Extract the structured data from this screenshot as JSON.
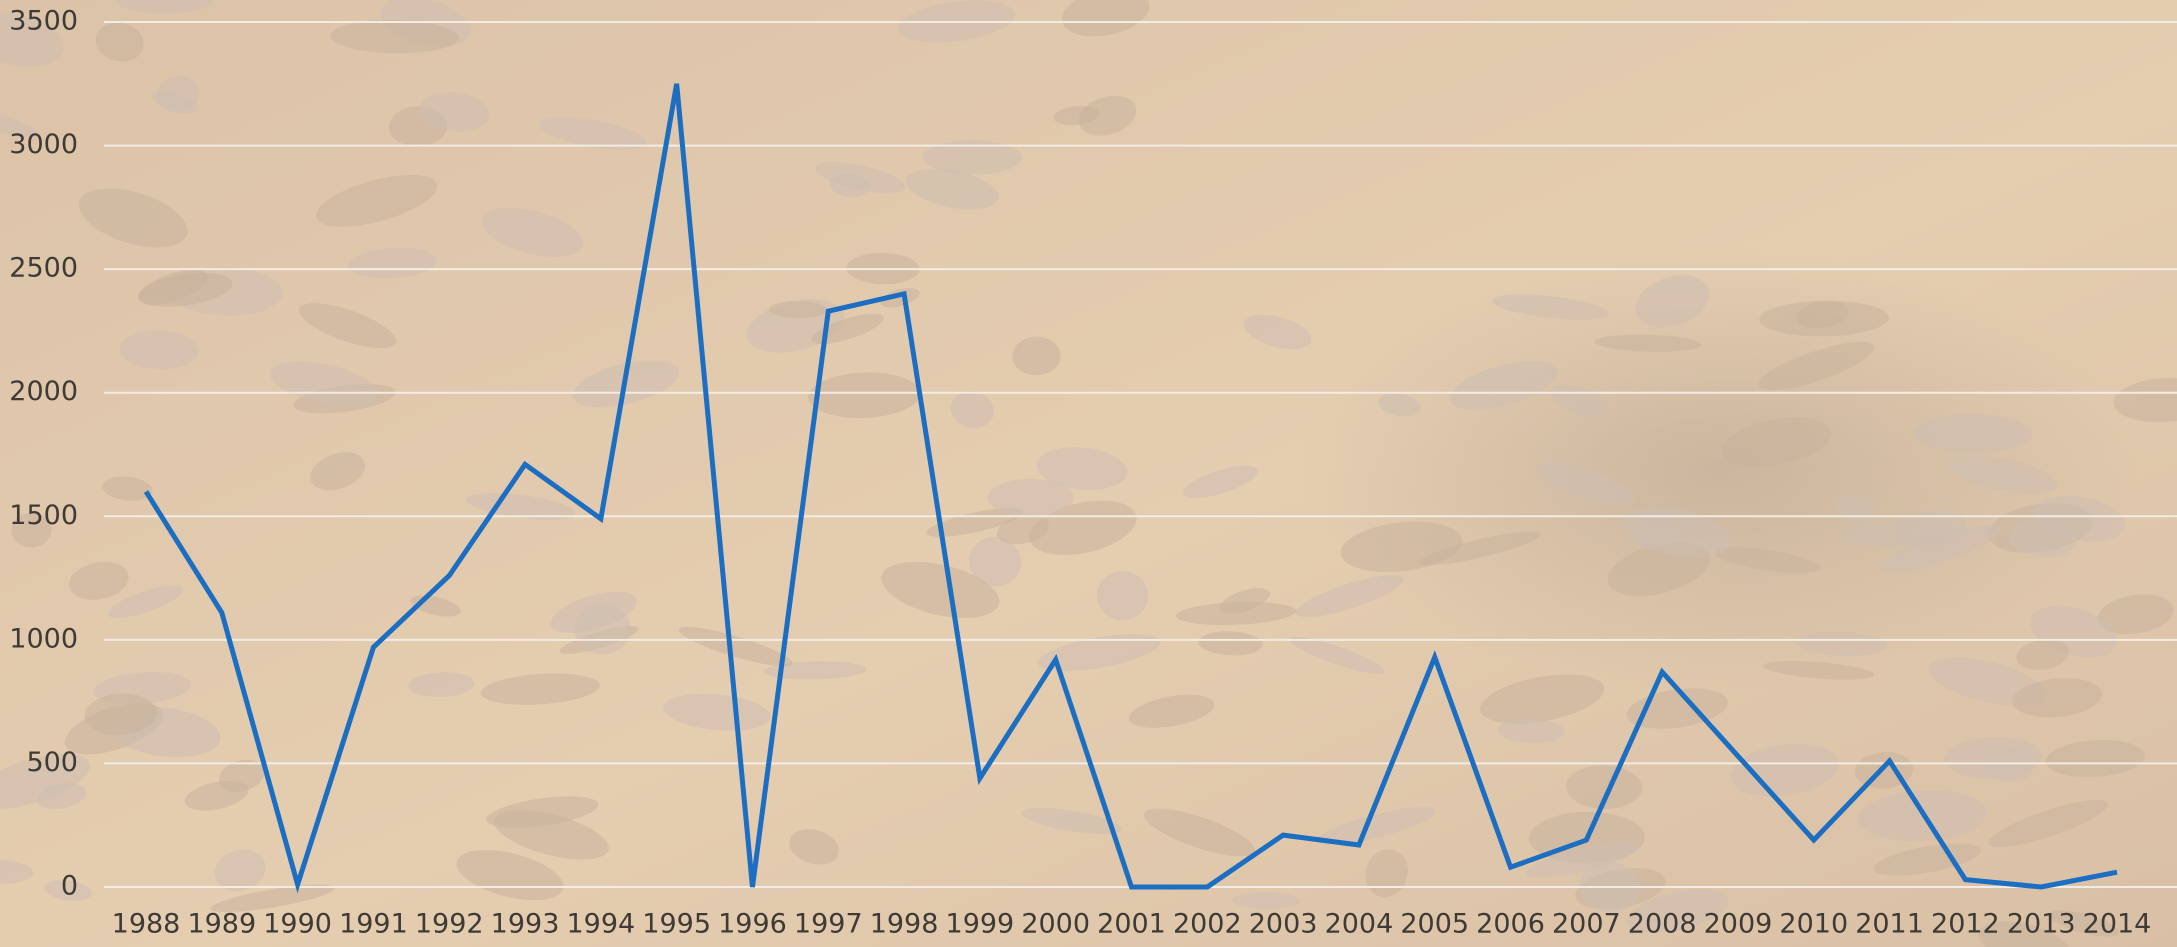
{
  "chart_data": {
    "type": "line",
    "categories": [
      "1988",
      "1989",
      "1990",
      "1991",
      "1992",
      "1993",
      "1994",
      "1995",
      "1996",
      "1997",
      "1998",
      "1999",
      "2000",
      "2001",
      "2002",
      "2003",
      "2004",
      "2005",
      "2006",
      "2007",
      "2008",
      "2009",
      "2010",
      "2011",
      "2012",
      "2013",
      "2014"
    ],
    "series": [
      {
        "color": "#1b6ec2",
        "values": [
          1600,
          1110,
          10,
          970,
          1260,
          1710,
          1490,
          3250,
          0,
          2330,
          2400,
          440,
          920,
          0,
          0,
          210,
          170,
          930,
          80,
          190,
          870,
          530,
          190,
          510,
          30,
          0,
          60
        ]
      }
    ],
    "ylim": [
      0,
      3500
    ],
    "yticks": [
      0,
      500,
      1000,
      1500,
      2000,
      2500,
      3000,
      3500
    ],
    "grid": true
  }
}
